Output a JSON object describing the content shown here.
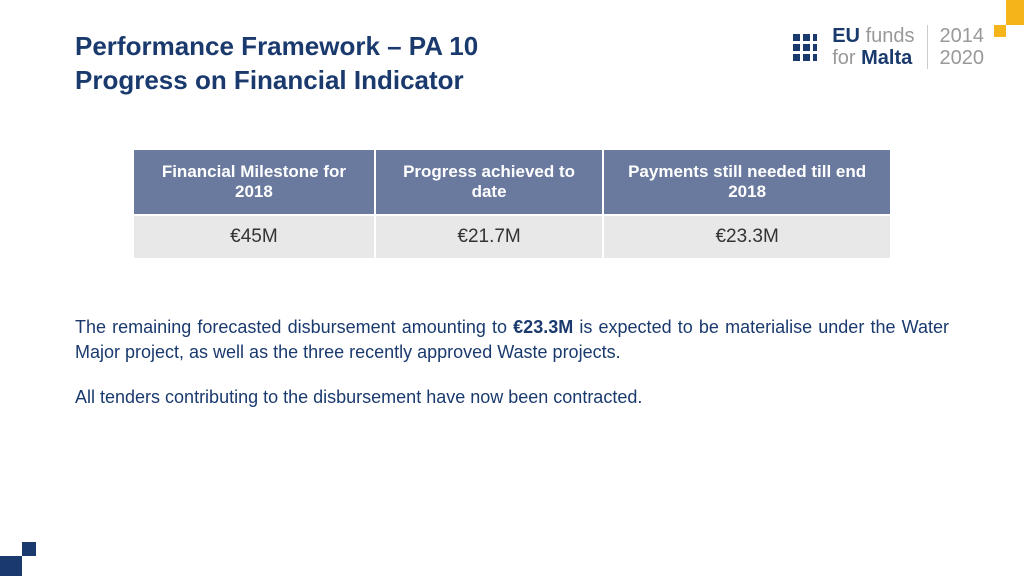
{
  "header": {
    "title_line1": "Performance Framework – PA 10",
    "title_line2": "Progress on Financial Indicator",
    "logo": {
      "eu": "EU",
      "funds": "funds",
      "for": "for",
      "malta": "Malta",
      "year1": "2014",
      "year2": "2020"
    }
  },
  "table": {
    "header_bg": "#6a7a9e",
    "header_color": "#ffffff",
    "row_bg": "#e8e8e8",
    "columns": [
      "Financial Milestone for 2018",
      "Progress achieved to date",
      "Payments still needed till end 2018"
    ],
    "rows": [
      [
        "€45M",
        "€21.7M",
        "€23.3M"
      ]
    ]
  },
  "body": {
    "p1_pre": "The remaining forecasted disbursement amounting to ",
    "p1_bold": "€23.3M",
    "p1_post": " is expected to be materialise under the Water Major project, as well as the three recently approved Waste projects.",
    "p2": "All tenders contributing to the disbursement have now been contracted."
  },
  "colors": {
    "primary": "#1a3a6e",
    "accent": "#f4b41a"
  }
}
